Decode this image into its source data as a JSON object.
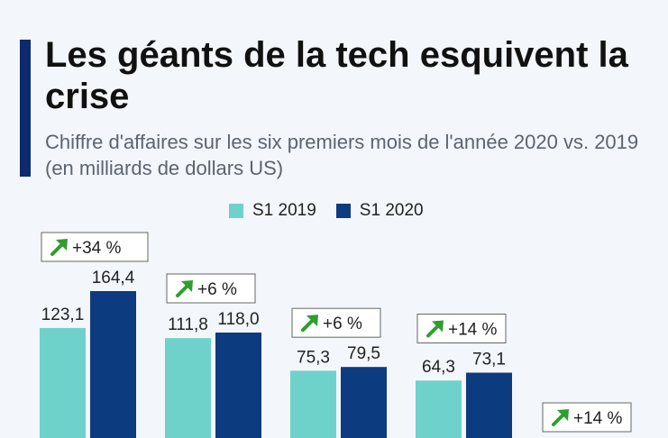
{
  "header": {
    "title": "Les géants de la tech esquivent la crise",
    "subtitle": "Chiffre d'affaires sur les six premiers mois de l'année 2020 vs. 2019 (en milliards de dollars US)"
  },
  "colors": {
    "accent": "#0d2a6e",
    "series_2019": "#6fd2ca",
    "series_2020": "#0d3b80",
    "badge_arrow": "#2e9e2e"
  },
  "chart_data": {
    "type": "bar",
    "title": "Les géants de la tech esquivent la crise",
    "subtitle": "Chiffre d'affaires sur les six premiers mois de l'année 2020 vs. 2019 (en milliards de dollars US)",
    "categories": [
      "",
      "",
      "",
      "",
      ""
    ],
    "series": [
      {
        "name": "S1 2019",
        "values": [
          123.1,
          111.8,
          75.3,
          64.3,
          null
        ],
        "labels": [
          "123,1",
          "111,8",
          "75,3",
          "64,3",
          ""
        ]
      },
      {
        "name": "S1 2020",
        "values": [
          164.4,
          118.0,
          79.5,
          73.1,
          null
        ],
        "labels": [
          "164,4",
          "118,0",
          "79,5",
          "73,1",
          ""
        ]
      }
    ],
    "changes": [
      "+34 %",
      "+6 %",
      "+6 %",
      "+14 %",
      "+14 %"
    ],
    "legend_position": "top-center",
    "grid": false
  }
}
